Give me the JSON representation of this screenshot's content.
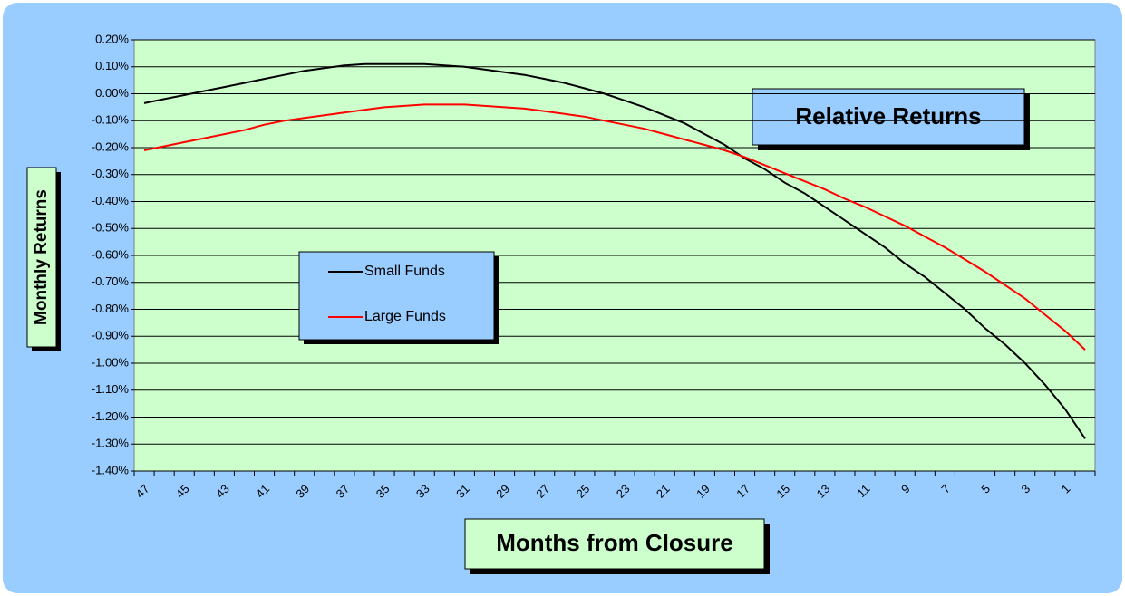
{
  "chart_data": {
    "type": "line",
    "title": "Relative Returns",
    "x_label": "Months from Closure",
    "y_label": "Monthly Returns",
    "categories": [
      "47",
      null,
      "45",
      null,
      "43",
      null,
      "41",
      null,
      "39",
      null,
      "37",
      null,
      "35",
      null,
      "33",
      null,
      "31",
      null,
      "29",
      null,
      "27",
      null,
      "25",
      null,
      "23",
      null,
      "21",
      null,
      "19",
      null,
      "17",
      null,
      "15",
      null,
      "13",
      null,
      "11",
      null,
      "9",
      null,
      "7",
      null,
      "5",
      null,
      "3",
      null,
      "1",
      null
    ],
    "series": [
      {
        "name": "Small Funds",
        "color": "#000000",
        "values": [
          -0.035,
          -0.02,
          -0.005,
          0.01,
          0.025,
          0.04,
          0.055,
          0.07,
          0.085,
          0.095,
          0.105,
          0.11,
          0.11,
          0.11,
          0.11,
          0.105,
          0.1,
          0.09,
          0.08,
          0.07,
          0.055,
          0.04,
          0.02,
          0.0,
          -0.025,
          -0.05,
          -0.08,
          -0.11,
          -0.15,
          -0.19,
          -0.24,
          -0.28,
          -0.33,
          -0.37,
          -0.42,
          -0.47,
          -0.52,
          -0.57,
          -0.63,
          -0.68,
          -0.74,
          -0.8,
          -0.87,
          -0.93,
          -1.0,
          -1.08,
          -1.17,
          -1.28
        ]
      },
      {
        "name": "Large Funds",
        "color": "#ff0000",
        "values": [
          -0.21,
          -0.195,
          -0.18,
          -0.165,
          -0.15,
          -0.135,
          -0.115,
          -0.1,
          -0.09,
          -0.08,
          -0.07,
          -0.06,
          -0.05,
          -0.045,
          -0.04,
          -0.04,
          -0.04,
          -0.045,
          -0.05,
          -0.055,
          -0.065,
          -0.075,
          -0.085,
          -0.1,
          -0.115,
          -0.13,
          -0.15,
          -0.17,
          -0.19,
          -0.21,
          -0.235,
          -0.265,
          -0.295,
          -0.325,
          -0.355,
          -0.39,
          -0.42,
          -0.455,
          -0.49,
          -0.53,
          -0.57,
          -0.615,
          -0.66,
          -0.71,
          -0.76,
          -0.82,
          -0.88,
          -0.95
        ]
      }
    ],
    "ylim": [
      -1.4,
      0.2
    ],
    "yticks": [
      {
        "value": 0.2,
        "label": "0.20%"
      },
      {
        "value": 0.1,
        "label": "0.10%"
      },
      {
        "value": 0,
        "label": "0.00%"
      },
      {
        "value": -0.1,
        "label": "-0.10%"
      },
      {
        "value": -0.2,
        "label": "-0.20%"
      },
      {
        "value": -0.3,
        "label": "-0.30%"
      },
      {
        "value": -0.4,
        "label": "-0.40%"
      },
      {
        "value": -0.5,
        "label": "-0.50%"
      },
      {
        "value": -0.6,
        "label": "-0.60%"
      },
      {
        "value": -0.7,
        "label": "-0.70%"
      },
      {
        "value": -0.8,
        "label": "-0.80%"
      },
      {
        "value": -0.9,
        "label": "-0.90%"
      },
      {
        "value": -1.0,
        "label": "-1.00%"
      },
      {
        "value": -1.1,
        "label": "-1.10%"
      },
      {
        "value": -1.2,
        "label": "-1.20%"
      },
      {
        "value": -1.3,
        "label": "-1.30%"
      },
      {
        "value": -1.4,
        "label": "-1.40%"
      }
    ],
    "grid": true,
    "legend": "left",
    "plot_color": "#ccffcc",
    "background_color": "#99ccff"
  }
}
